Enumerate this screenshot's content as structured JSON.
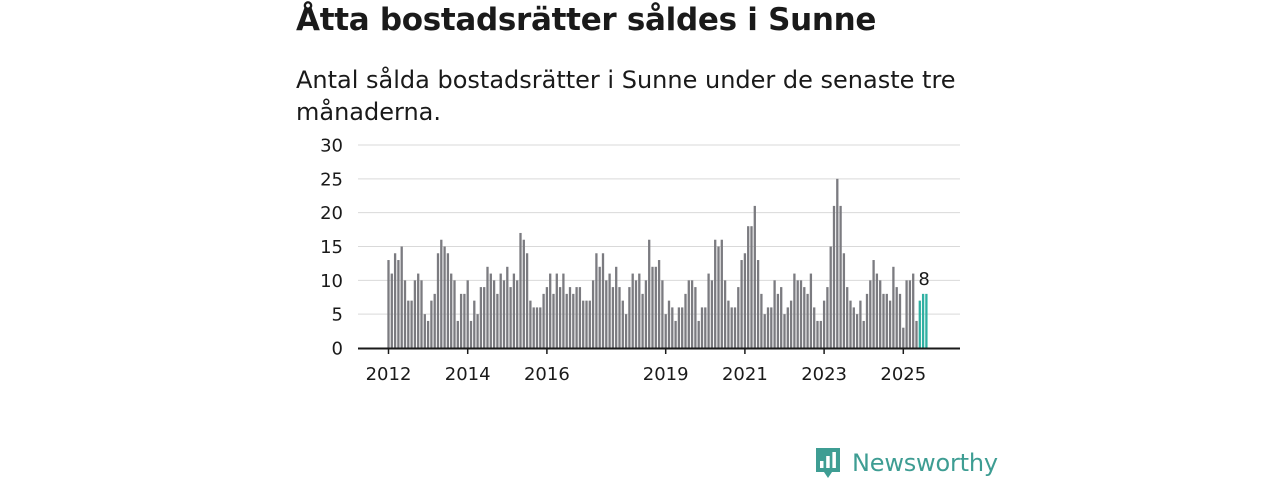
{
  "title": "Åtta bostadsrätter såldes i Sunne",
  "subtitle": "Antal sålda bostadsrätter i Sunne under de senaste tre månaderna.",
  "brand": {
    "name": "Newsworthy",
    "color": "#3e9d93",
    "icon": "bar-chart-speech-icon"
  },
  "colors": {
    "bar": "#7b7b80",
    "highlight": "#2fb0a2",
    "axis": "#1a1a1a",
    "grid": "#d9d9d9"
  },
  "chart_data": {
    "type": "bar",
    "title": "Åtta bostadsrätter såldes i Sunne",
    "xlabel": "",
    "ylabel": "",
    "ylim": [
      0,
      30
    ],
    "yticks": [
      0,
      5,
      10,
      15,
      20,
      25,
      30
    ],
    "x_tick_labels": [
      "2012",
      "2014",
      "2016",
      "2019",
      "2021",
      "2023",
      "2025"
    ],
    "x_tick_indices": [
      0,
      24,
      48,
      84,
      108,
      132,
      156
    ],
    "start": "2012-01",
    "frequency": "monthly",
    "annotation": {
      "index": 162,
      "label": "8"
    },
    "values": [
      13,
      11,
      14,
      13,
      15,
      10,
      7,
      7,
      10,
      11,
      10,
      5,
      4,
      7,
      8,
      14,
      16,
      15,
      14,
      11,
      10,
      4,
      8,
      8,
      10,
      4,
      7,
      5,
      9,
      9,
      12,
      11,
      10,
      8,
      11,
      10,
      12,
      9,
      11,
      10,
      17,
      16,
      14,
      7,
      6,
      6,
      6,
      8,
      9,
      11,
      8,
      11,
      9,
      11,
      8,
      9,
      8,
      9,
      9,
      7,
      7,
      7,
      10,
      14,
      12,
      14,
      10,
      11,
      9,
      12,
      9,
      7,
      5,
      9,
      11,
      10,
      11,
      8,
      10,
      16,
      12,
      12,
      13,
      10,
      5,
      7,
      6,
      4,
      6,
      6,
      8,
      10,
      10,
      9,
      4,
      6,
      6,
      11,
      10,
      16,
      15,
      16,
      10,
      7,
      6,
      6,
      9,
      13,
      14,
      18,
      18,
      21,
      13,
      8,
      5,
      6,
      6,
      10,
      8,
      9,
      5,
      6,
      7,
      11,
      10,
      10,
      9,
      8,
      11,
      6,
      4,
      4,
      7,
      9,
      15,
      21,
      25,
      21,
      14,
      9,
      7,
      6,
      5,
      7,
      4,
      8,
      10,
      13,
      11,
      10,
      8,
      8,
      7,
      12,
      9,
      8,
      3,
      10,
      10,
      11,
      4,
      7,
      8,
      8
    ]
  }
}
